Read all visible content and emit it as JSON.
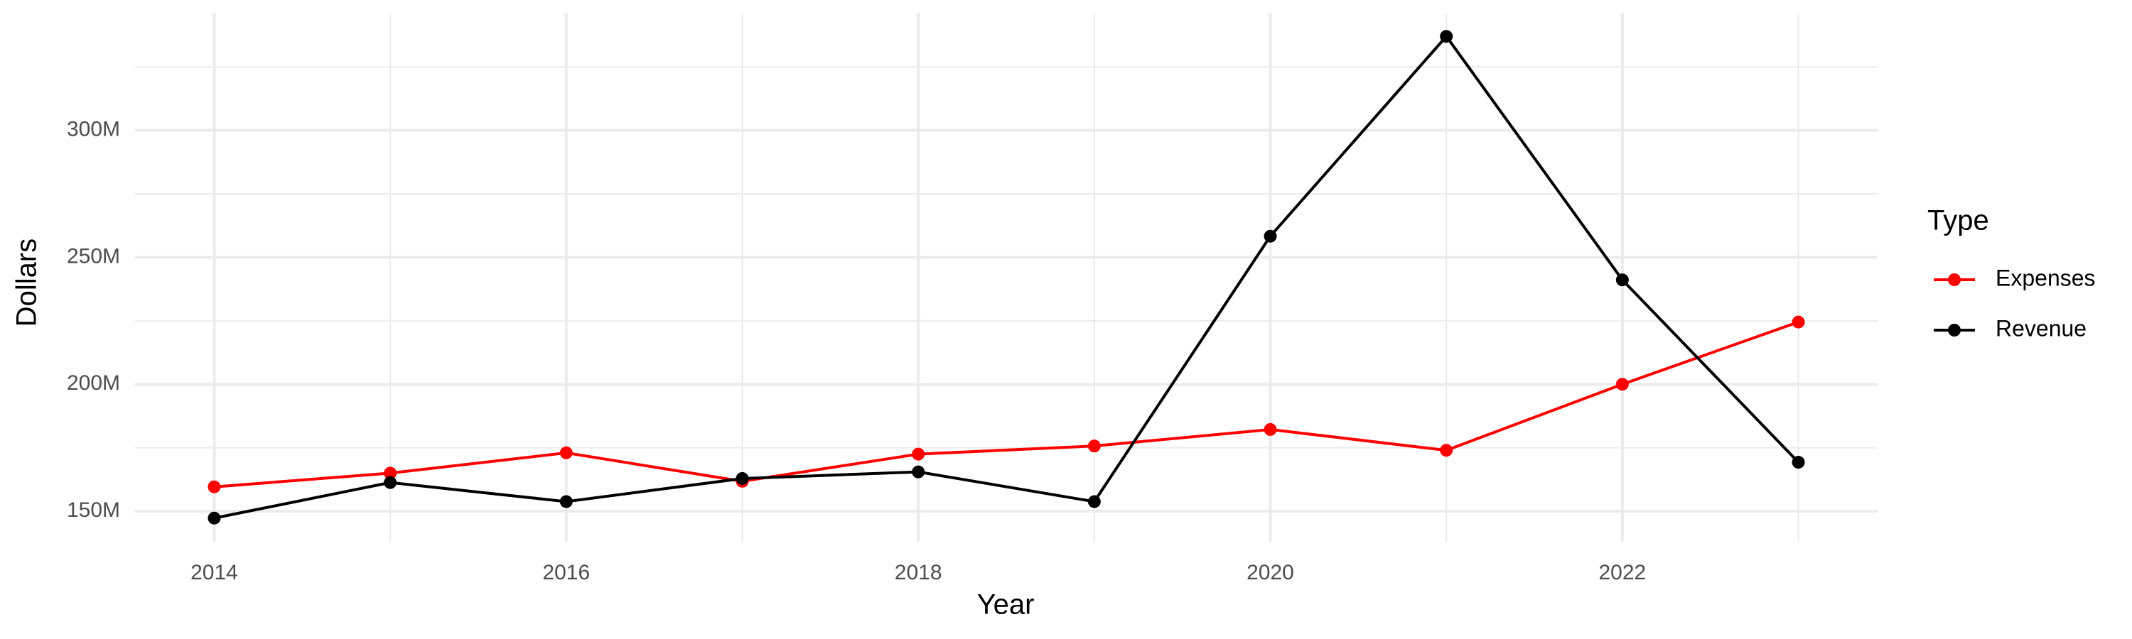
{
  "chart_data": {
    "type": "line",
    "x_label": "Year",
    "y_label": "Dollars",
    "legend_title": "Type",
    "legend_position": "right",
    "grid": true,
    "x": [
      2014,
      2015,
      2016,
      2017,
      2018,
      2019,
      2020,
      2021,
      2022,
      2023
    ],
    "series": [
      {
        "name": "Expenses",
        "color": "#ff0000",
        "values": [
          159600000,
          165000000,
          173000000,
          161800000,
          172500000,
          175700000,
          182200000,
          174000000,
          200000000,
          224500000
        ]
      },
      {
        "name": "Revenue",
        "color": "#000000",
        "values": [
          147300000,
          161300000,
          153800000,
          162900000,
          165500000,
          153800000,
          258300000,
          337000000,
          241100000,
          169300000
        ]
      }
    ],
    "xlim": [
      2013.55,
      2023.45
    ],
    "xticks": [
      2014,
      2016,
      2018,
      2020,
      2022
    ],
    "minor_xticks": [
      2015,
      2017,
      2019,
      2021,
      2023
    ],
    "ylim": [
      138000000,
      346000000
    ],
    "yticks": [
      {
        "value": 150000000,
        "label": "150M"
      },
      {
        "value": 200000000,
        "label": "200M"
      },
      {
        "value": 250000000,
        "label": "250M"
      },
      {
        "value": 300000000,
        "label": "300M"
      }
    ],
    "minor_yticks": [
      175000000,
      225000000,
      275000000,
      325000000
    ]
  }
}
